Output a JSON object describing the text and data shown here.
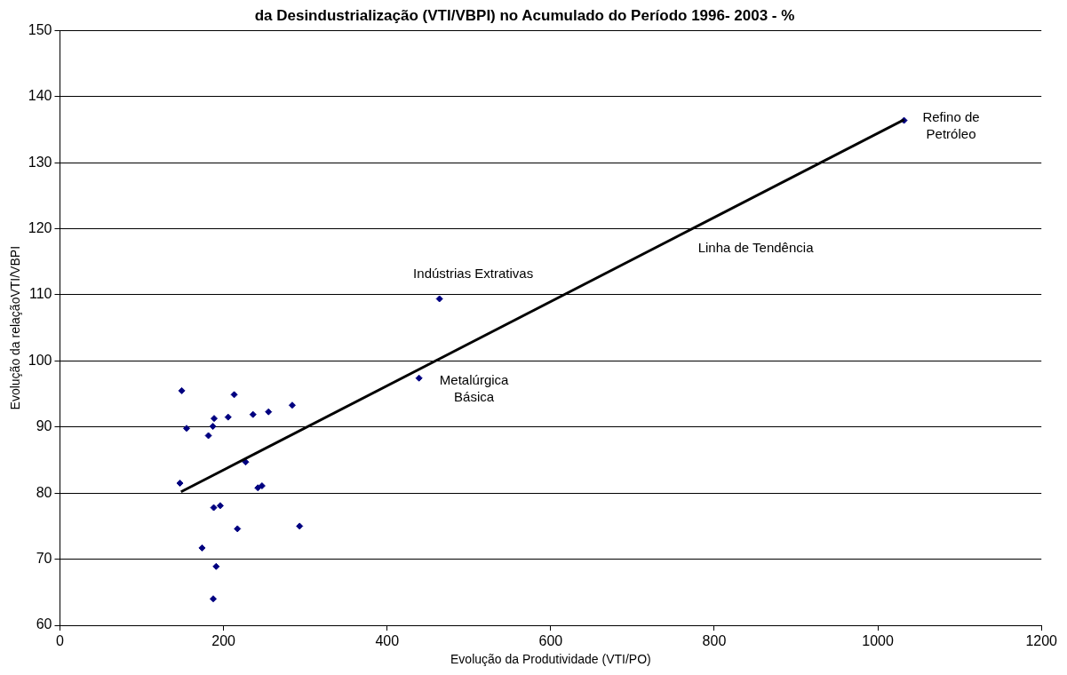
{
  "chart_data": {
    "type": "scatter",
    "title": "da Desindustrialização (VTI/VBPI) no Acumulado do Período 1996- 2003 - %",
    "xlabel": "Evolução da Produtividade (VTI/PO)",
    "ylabel": "Evolução da relaçãoVTI/VBPI",
    "xlim": [
      0,
      1200
    ],
    "xticks": [
      0,
      200,
      400,
      600,
      800,
      1000,
      1200
    ],
    "ylim": [
      60,
      150
    ],
    "yticks": [
      60,
      70,
      80,
      90,
      100,
      110,
      120,
      130,
      140,
      150
    ],
    "grid": "y",
    "legend": false,
    "marker": "diamond",
    "series": [
      {
        "color": "#000080",
        "x": [
          148.9,
          213,
          284,
          255,
          236,
          205.6,
          188.5,
          187,
          154.8,
          181.5,
          227,
          146.7,
          242,
          247,
          188,
          196,
          293,
          217,
          173.7,
          191,
          187.4,
          464,
          439,
          1032
        ],
        "values": [
          95.5,
          94.9,
          93.3,
          92.3,
          91.9,
          91.5,
          91.3,
          90.1,
          89.8,
          88.7,
          84.7,
          81.5,
          80.8,
          81.1,
          77.8,
          78.1,
          75.0,
          74.6,
          71.7,
          68.9,
          64.0,
          109.4,
          97.4,
          136.4
        ]
      },
      {
        "type": "line",
        "color": "#000000",
        "marker": "none",
        "line_style": "solid",
        "x": [
          148,
          1032
        ],
        "values": [
          80.2,
          136.5
        ]
      }
    ],
    "annotations": [
      {
        "text": "Indústrias Extrativas",
        "x": 464,
        "y": 109.4
      },
      {
        "text": "Metalúrgica\nBásica",
        "x": 439,
        "y": 97.4
      },
      {
        "text": "Refino de\nPetróleo",
        "x": 1032,
        "y": 136.4
      },
      {
        "text": "Linha de Tendência",
        "x": 780,
        "y": 120.45
      }
    ]
  }
}
